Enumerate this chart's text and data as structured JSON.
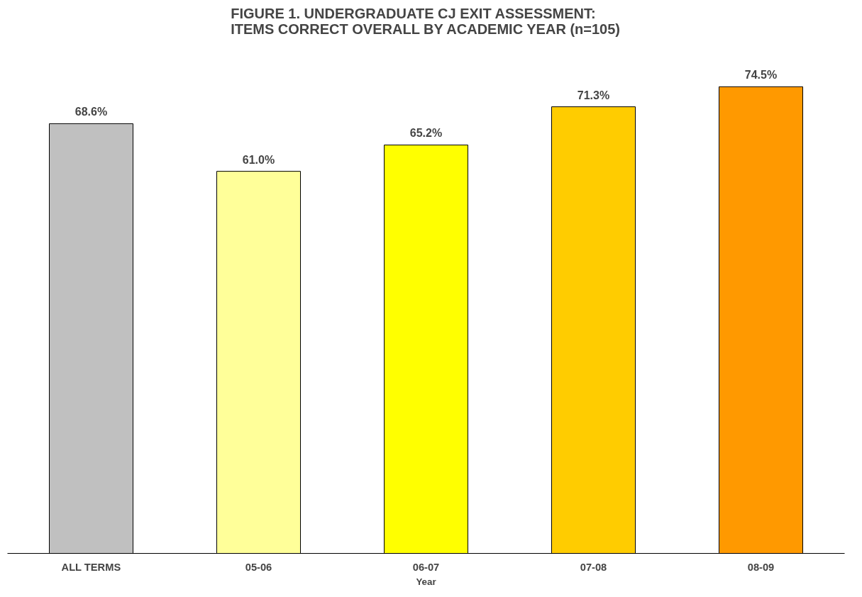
{
  "chart_data": {
    "type": "bar",
    "title": "FIGURE 1.  UNDERGRADUATE CJ EXIT ASSESSMENT:\nITEMS CORRECT OVERALL BY ACADEMIC YEAR (n=105)",
    "xlabel": "Year",
    "categories": [
      "ALL TERMS",
      "05-06",
      "06-07",
      "07-08",
      "08-09"
    ],
    "values": [
      68.6,
      61.0,
      65.2,
      71.3,
      74.5
    ],
    "value_labels": [
      "68.6%",
      "61.0%",
      "65.2%",
      "71.3%",
      "74.5%"
    ],
    "colors": [
      "#c0c0c0",
      "#ffff99",
      "#ffff00",
      "#ffcc00",
      "#ff9900"
    ],
    "tick_labels": "x",
    "grid": false
  }
}
